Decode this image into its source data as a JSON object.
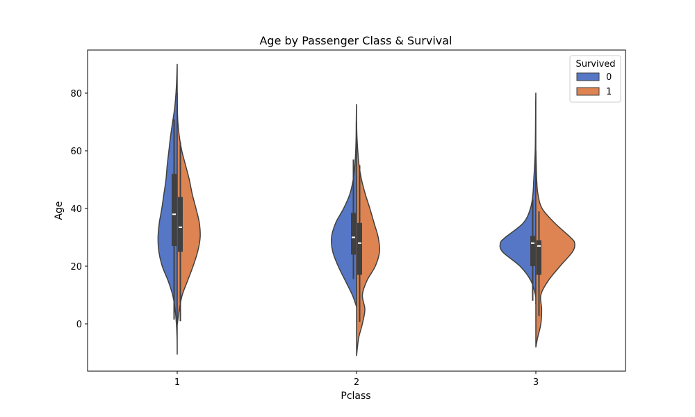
{
  "chart_data": {
    "type": "violin",
    "title": "Age by Passenger Class & Survival",
    "xlabel": "Pclass",
    "ylabel": "Age",
    "categories": [
      "1",
      "2",
      "3"
    ],
    "ylim": [
      -15,
      95
    ],
    "yticks": [
      0,
      20,
      40,
      60,
      80
    ],
    "grid": false,
    "legend": {
      "title": "Survived",
      "placement": "top-right",
      "entries": [
        "0",
        "1"
      ]
    },
    "split": true,
    "colors": {
      "0": "#5577c5",
      "1": "#dd8452",
      "outline": "#404040"
    },
    "series": [
      {
        "name": "0",
        "violins": [
          {
            "category": "1",
            "profile": [
              [
                -10.5,
                0.001
              ],
              [
                -5,
                0.004
              ],
              [
                0,
                0.02
              ],
              [
                5,
                0.05
              ],
              [
                10,
                0.11
              ],
              [
                15,
                0.22
              ],
              [
                20,
                0.36
              ],
              [
                25,
                0.44
              ],
              [
                30,
                0.46
              ],
              [
                35,
                0.43
              ],
              [
                40,
                0.37
              ],
              [
                45,
                0.32
              ],
              [
                50,
                0.27
              ],
              [
                55,
                0.24
              ],
              [
                60,
                0.2
              ],
              [
                65,
                0.16
              ],
              [
                70,
                0.11
              ],
              [
                75,
                0.06
              ],
              [
                80,
                0.03
              ],
              [
                85,
                0.012
              ],
              [
                90,
                0.001
              ]
            ],
            "box": {
              "q1": 27,
              "median": 38,
              "q3": 52,
              "whisker_low": 1.5,
              "whisker_high": 71
            }
          },
          {
            "category": "2",
            "profile": [
              [
                6,
                0.002
              ],
              [
                10,
                0.1
              ],
              [
                15,
                0.27
              ],
              [
                20,
                0.44
              ],
              [
                25,
                0.57
              ],
              [
                30,
                0.6
              ],
              [
                35,
                0.5
              ],
              [
                40,
                0.31
              ],
              [
                45,
                0.16
              ],
              [
                50,
                0.08
              ],
              [
                55,
                0.04
              ],
              [
                60,
                0.02
              ],
              [
                65,
                0.01
              ],
              [
                70,
                0.007
              ],
              [
                76,
                0.002
              ]
            ],
            "box": {
              "q1": 24,
              "median": 30,
              "q3": 38.5,
              "whisker_low": 15.5,
              "whisker_high": 57
            }
          },
          {
            "category": "3",
            "profile": [
              [
                7,
                0.001
              ],
              [
                10,
                0.01
              ],
              [
                15,
                0.12
              ],
              [
                20,
                0.38
              ],
              [
                25,
                0.8
              ],
              [
                28,
                0.85
              ],
              [
                30,
                0.73
              ],
              [
                35,
                0.3
              ],
              [
                40,
                0.13
              ],
              [
                45,
                0.07
              ],
              [
                50,
                0.05
              ],
              [
                55,
                0.03
              ],
              [
                60,
                0.015
              ],
              [
                65,
                0.01
              ],
              [
                70,
                0.007
              ],
              [
                75,
                0.005
              ],
              [
                80,
                0.001
              ]
            ],
            "box": {
              "q1": 20,
              "median": 28,
              "q3": 30.5,
              "whisker_low": 8,
              "whisker_high": 43
            }
          }
        ]
      },
      {
        "name": "1",
        "violins": [
          {
            "category": "1",
            "profile": [
              [
                0,
                0.004
              ],
              [
                5,
                0.05
              ],
              [
                10,
                0.12
              ],
              [
                15,
                0.25
              ],
              [
                20,
                0.38
              ],
              [
                25,
                0.49
              ],
              [
                30,
                0.55
              ],
              [
                35,
                0.53
              ],
              [
                40,
                0.45
              ],
              [
                45,
                0.36
              ],
              [
                50,
                0.29
              ],
              [
                55,
                0.2
              ],
              [
                60,
                0.11
              ],
              [
                65,
                0.05
              ],
              [
                70,
                0.015
              ],
              [
                75,
                0.004
              ],
              [
                80,
                0.001
              ]
            ],
            "box": {
              "q1": 25,
              "median": 33.5,
              "q3": 44,
              "whisker_low": 0.9,
              "whisker_high": 63
            }
          },
          {
            "category": "2",
            "profile": [
              [
                -11,
                0.001
              ],
              [
                -5,
                0.05
              ],
              [
                0,
                0.14
              ],
              [
                5,
                0.2
              ],
              [
                10,
                0.14
              ],
              [
                15,
                0.25
              ],
              [
                20,
                0.45
              ],
              [
                25,
                0.55
              ],
              [
                30,
                0.52
              ],
              [
                35,
                0.42
              ],
              [
                40,
                0.32
              ],
              [
                45,
                0.21
              ],
              [
                50,
                0.12
              ],
              [
                55,
                0.06
              ],
              [
                60,
                0.03
              ],
              [
                65,
                0.01
              ],
              [
                70,
                0.001
              ]
            ],
            "box": {
              "q1": 17,
              "median": 28,
              "q3": 35,
              "whisker_low": 0.7,
              "whisker_high": 55
            }
          },
          {
            "category": "3",
            "profile": [
              [
                -8,
                0.001
              ],
              [
                -5,
                0.04
              ],
              [
                0,
                0.12
              ],
              [
                5,
                0.14
              ],
              [
                10,
                0.12
              ],
              [
                15,
                0.3
              ],
              [
                20,
                0.58
              ],
              [
                25,
                0.88
              ],
              [
                28,
                0.93
              ],
              [
                30,
                0.83
              ],
              [
                35,
                0.45
              ],
              [
                40,
                0.15
              ],
              [
                45,
                0.05
              ],
              [
                50,
                0.02
              ],
              [
                55,
                0.01
              ],
              [
                60,
                0.001
              ]
            ],
            "box": {
              "q1": 17,
              "median": 27,
              "q3": 29,
              "whisker_low": 2.7,
              "whisker_high": 39
            }
          }
        ]
      }
    ]
  }
}
